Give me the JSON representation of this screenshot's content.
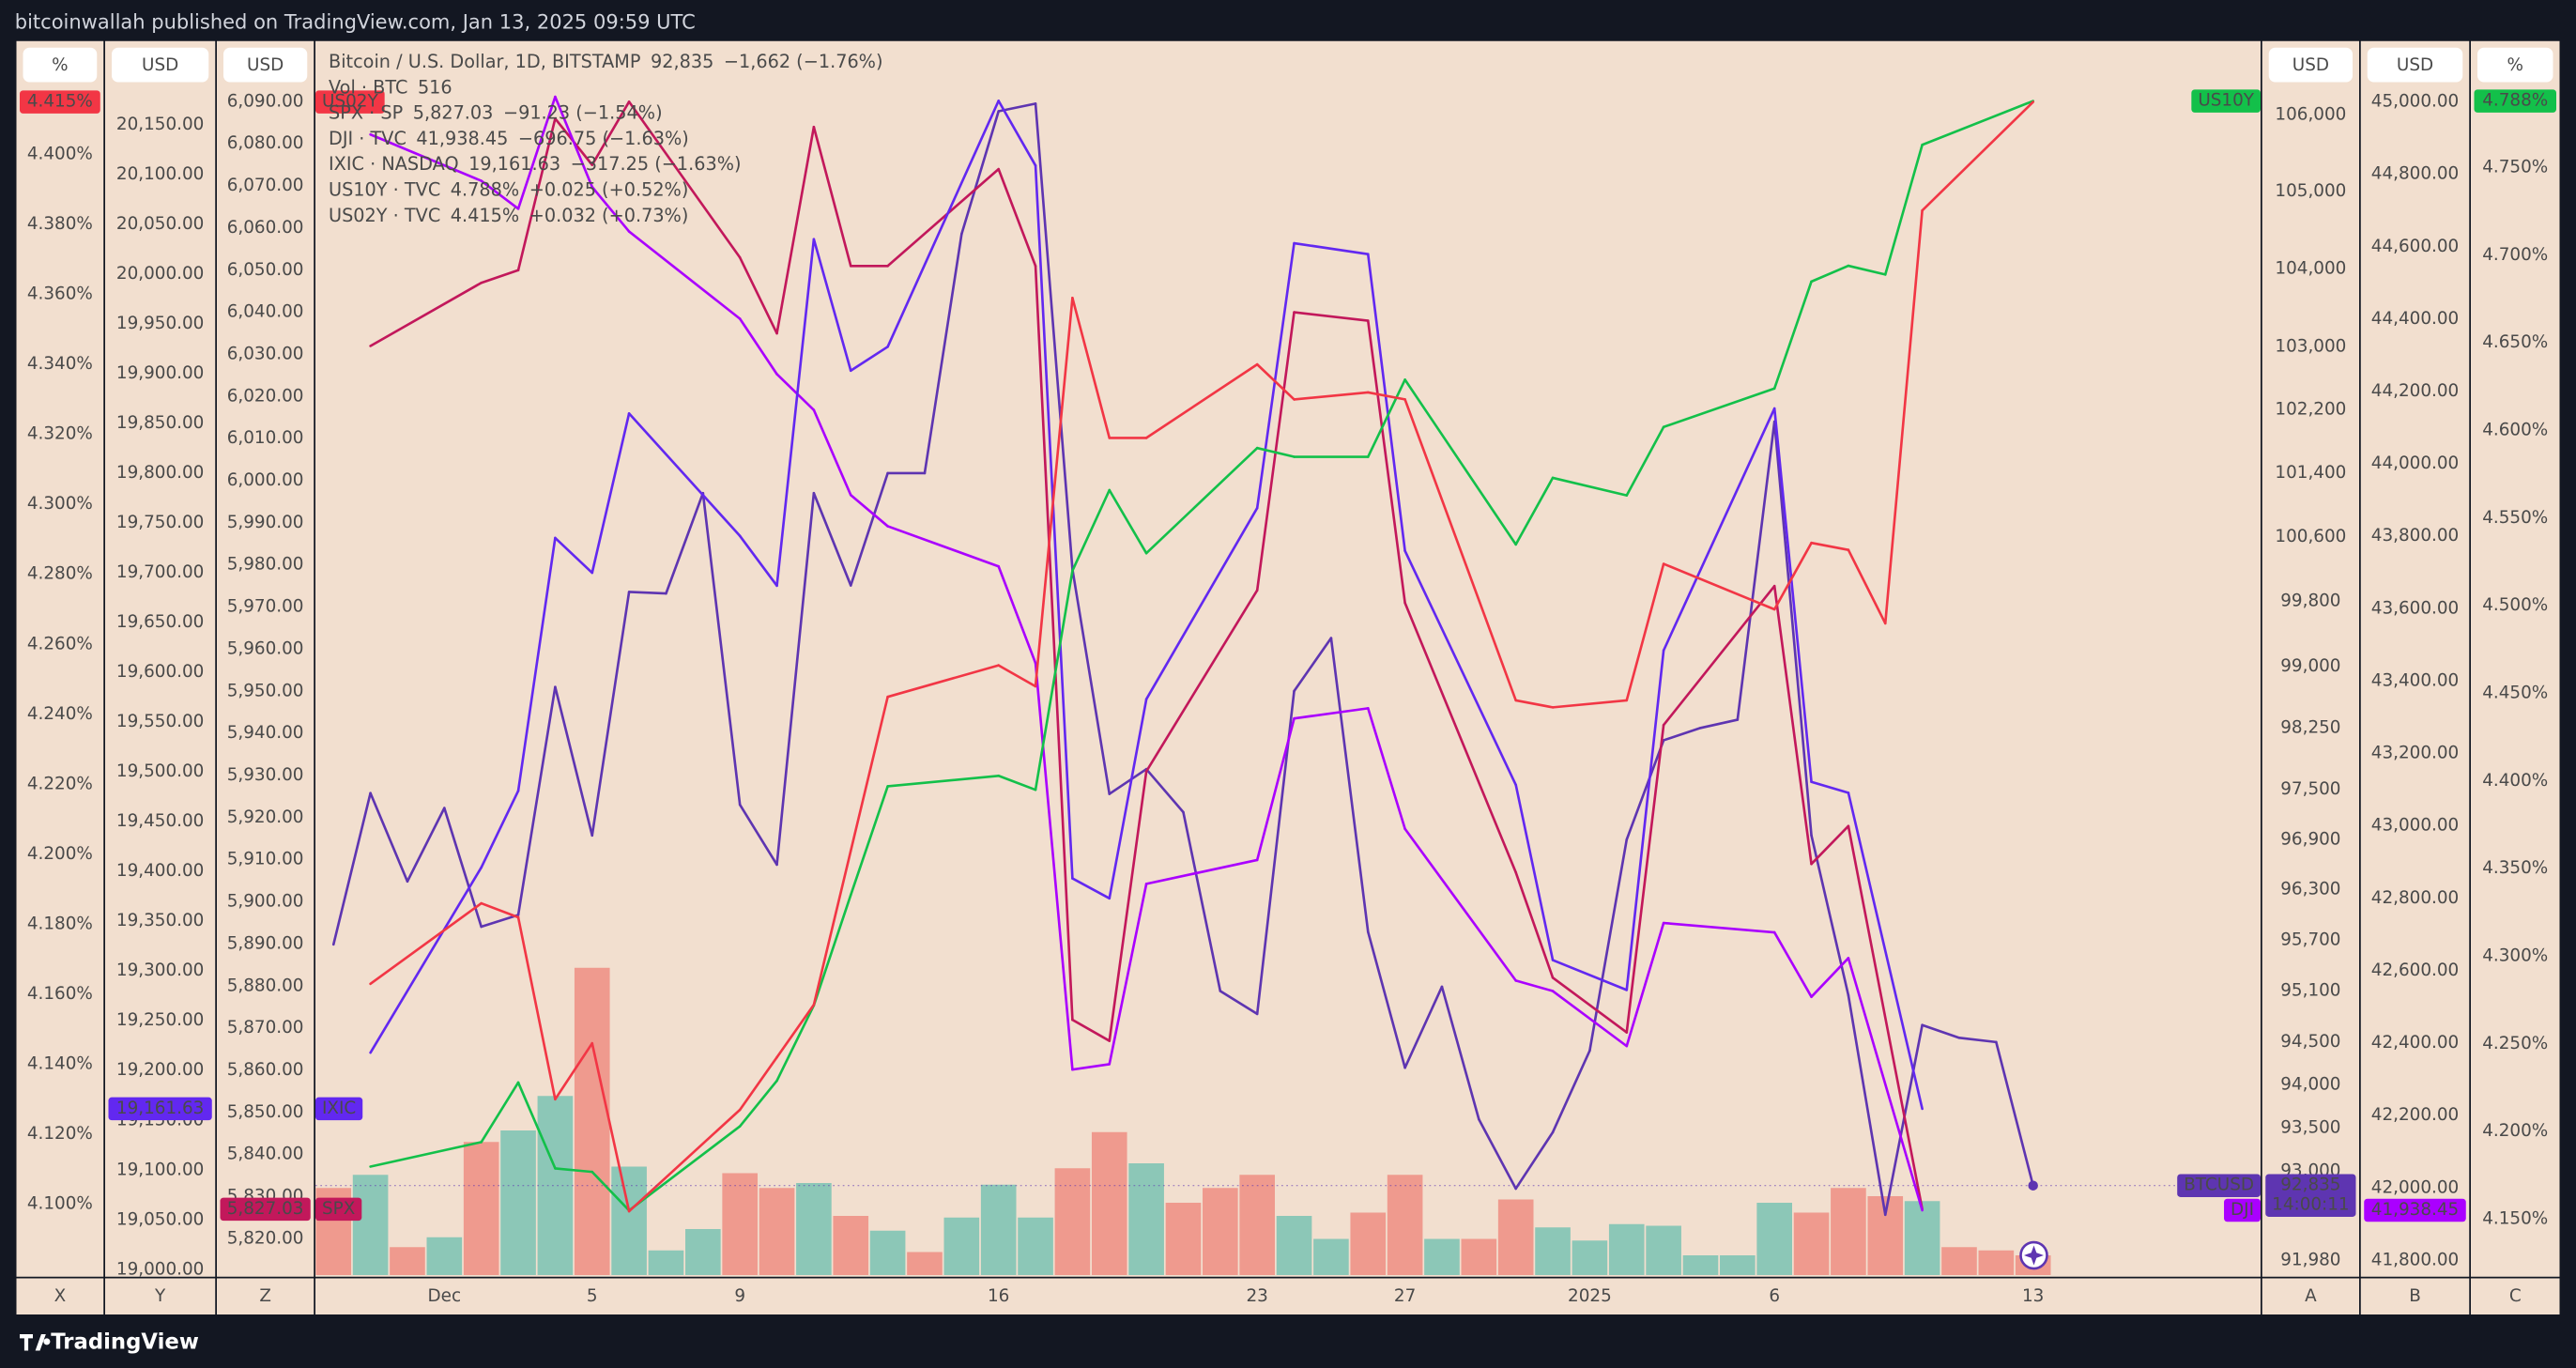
{
  "header": "bitcoinwallah published on TradingView.com, Jan 13, 2025 09:59 UTC",
  "footer": "TradingView",
  "chart_data": {
    "type": "line",
    "grid": false,
    "categories": [
      null,
      null,
      null,
      "Dec",
      null,
      null,
      null,
      "5",
      null,
      null,
      null,
      "9",
      null,
      null,
      null,
      null,
      null,
      null,
      "16",
      null,
      null,
      null,
      null,
      null,
      null,
      "23",
      null,
      null,
      null,
      "27",
      null,
      null,
      null,
      null,
      "2025",
      null,
      null,
      null,
      null,
      "6",
      null,
      null,
      null,
      null,
      null,
      null,
      "13"
    ],
    "axes": [
      {
        "id": "X",
        "side": "left",
        "unit": "%",
        "ylim": [
          4.0793,
          4.4324
        ],
        "yticks": [
          {
            "value": 4.1,
            "label": "4.100%"
          },
          {
            "value": 4.12,
            "label": "4.120%"
          },
          {
            "value": 4.14,
            "label": "4.140%"
          },
          {
            "value": 4.16,
            "label": "4.160%"
          },
          {
            "value": 4.18,
            "label": "4.180%"
          },
          {
            "value": 4.2,
            "label": "4.200%"
          },
          {
            "value": 4.22,
            "label": "4.220%"
          },
          {
            "value": 4.24,
            "label": "4.240%"
          },
          {
            "value": 4.26,
            "label": "4.260%"
          },
          {
            "value": 4.28,
            "label": "4.280%"
          },
          {
            "value": 4.3,
            "label": "4.300%"
          },
          {
            "value": 4.32,
            "label": "4.320%"
          },
          {
            "value": 4.34,
            "label": "4.340%"
          },
          {
            "value": 4.36,
            "label": "4.360%"
          },
          {
            "value": 4.38,
            "label": "4.380%"
          },
          {
            "value": 4.4,
            "label": "4.400%"
          }
        ]
      },
      {
        "id": "Y",
        "side": "left",
        "unit": "USD",
        "ylim": [
          18993,
          20234
        ],
        "yticks": [
          {
            "value": 19000,
            "label": "19,000.00"
          },
          {
            "value": 19050,
            "label": "19,050.00"
          },
          {
            "value": 19100,
            "label": "19,100.00"
          },
          {
            "value": 19150,
            "label": "19,150.00"
          },
          {
            "value": 19200,
            "label": "19,200.00"
          },
          {
            "value": 19250,
            "label": "19,250.00"
          },
          {
            "value": 19300,
            "label": "19,300.00"
          },
          {
            "value": 19350,
            "label": "19,350.00"
          },
          {
            "value": 19400,
            "label": "19,400.00"
          },
          {
            "value": 19450,
            "label": "19,450.00"
          },
          {
            "value": 19500,
            "label": "19,500.00"
          },
          {
            "value": 19550,
            "label": "19,550.00"
          },
          {
            "value": 19600,
            "label": "19,600.00"
          },
          {
            "value": 19650,
            "label": "19,650.00"
          },
          {
            "value": 19700,
            "label": "19,700.00"
          },
          {
            "value": 19750,
            "label": "19,750.00"
          },
          {
            "value": 19800,
            "label": "19,800.00"
          },
          {
            "value": 19850,
            "label": "19,850.00"
          },
          {
            "value": 19900,
            "label": "19,900.00"
          },
          {
            "value": 19950,
            "label": "19,950.00"
          },
          {
            "value": 20000,
            "label": "20,000.00"
          },
          {
            "value": 20050,
            "label": "20,050.00"
          },
          {
            "value": 20100,
            "label": "20,100.00"
          },
          {
            "value": 20150,
            "label": "20,150.00"
          }
        ]
      },
      {
        "id": "Z",
        "side": "left",
        "unit": "USD",
        "ylim": [
          5811.0,
          6104.4
        ],
        "yticks": [
          {
            "value": 5820,
            "label": "5,820.00"
          },
          {
            "value": 5830,
            "label": "5,830.00"
          },
          {
            "value": 5840,
            "label": "5,840.00"
          },
          {
            "value": 5850,
            "label": "5,850.00"
          },
          {
            "value": 5860,
            "label": "5,860.00"
          },
          {
            "value": 5870,
            "label": "5,870.00"
          },
          {
            "value": 5880,
            "label": "5,880.00"
          },
          {
            "value": 5890,
            "label": "5,890.00"
          },
          {
            "value": 5900,
            "label": "5,900.00"
          },
          {
            "value": 5910,
            "label": "5,910.00"
          },
          {
            "value": 5920,
            "label": "5,920.00"
          },
          {
            "value": 5930,
            "label": "5,930.00"
          },
          {
            "value": 5940,
            "label": "5,940.00"
          },
          {
            "value": 5950,
            "label": "5,950.00"
          },
          {
            "value": 5960,
            "label": "5,960.00"
          },
          {
            "value": 5970,
            "label": "5,970.00"
          },
          {
            "value": 5980,
            "label": "5,980.00"
          },
          {
            "value": 5990,
            "label": "5,990.00"
          },
          {
            "value": 6000,
            "label": "6,000.00"
          },
          {
            "value": 6010,
            "label": "6,010.00"
          },
          {
            "value": 6020,
            "label": "6,020.00"
          },
          {
            "value": 6030,
            "label": "6,030.00"
          },
          {
            "value": 6040,
            "label": "6,040.00"
          },
          {
            "value": 6050,
            "label": "6,050.00"
          },
          {
            "value": 6060,
            "label": "6,060.00"
          },
          {
            "value": 6070,
            "label": "6,070.00"
          },
          {
            "value": 6080,
            "label": "6,080.00"
          },
          {
            "value": 6090,
            "label": "6,090.00"
          }
        ]
      },
      {
        "id": "A",
        "side": "right",
        "unit": "USD",
        "log": true,
        "ylim": [
          91793,
          106976
        ],
        "yticks": [
          {
            "value": 91980,
            "label": "91,980"
          },
          {
            "value": 93000,
            "label": "93,000"
          },
          {
            "value": 93500,
            "label": "93,500"
          },
          {
            "value": 94000,
            "label": "94,000"
          },
          {
            "value": 94500,
            "label": "94,500"
          },
          {
            "value": 95100,
            "label": "95,100"
          },
          {
            "value": 95700,
            "label": "95,700"
          },
          {
            "value": 96300,
            "label": "96,300"
          },
          {
            "value": 96900,
            "label": "96,900"
          },
          {
            "value": 97500,
            "label": "97,500"
          },
          {
            "value": 98250,
            "label": "98,250"
          },
          {
            "value": 99000,
            "label": "99,000"
          },
          {
            "value": 99800,
            "label": "99,800"
          },
          {
            "value": 100600,
            "label": "100,600"
          },
          {
            "value": 101400,
            "label": "101,400"
          },
          {
            "value": 102200,
            "label": "102,200"
          },
          {
            "value": 103000,
            "label": "103,000"
          },
          {
            "value": 104000,
            "label": "104,000"
          },
          {
            "value": 105000,
            "label": "105,000"
          },
          {
            "value": 106000,
            "label": "106,000"
          }
        ]
      },
      {
        "id": "B",
        "side": "right",
        "unit": "USD",
        "ylim": [
          41755,
          45168
        ],
        "yticks": [
          {
            "value": 41800,
            "label": "41,800.00"
          },
          {
            "value": 42000,
            "label": "42,000.00"
          },
          {
            "value": 42200,
            "label": "42,200.00"
          },
          {
            "value": 42400,
            "label": "42,400.00"
          },
          {
            "value": 42600,
            "label": "42,600.00"
          },
          {
            "value": 42800,
            "label": "42,800.00"
          },
          {
            "value": 43000,
            "label": "43,000.00"
          },
          {
            "value": 43200,
            "label": "43,200.00"
          },
          {
            "value": 43400,
            "label": "43,400.00"
          },
          {
            "value": 43600,
            "label": "43,600.00"
          },
          {
            "value": 43800,
            "label": "43,800.00"
          },
          {
            "value": 44000,
            "label": "44,000.00"
          },
          {
            "value": 44200,
            "label": "44,200.00"
          },
          {
            "value": 44400,
            "label": "44,400.00"
          },
          {
            "value": 44600,
            "label": "44,600.00"
          },
          {
            "value": 44800,
            "label": "44,800.00"
          },
          {
            "value": 45000,
            "label": "45,000.00"
          }
        ]
      },
      {
        "id": "C",
        "side": "right",
        "unit": "%",
        "ylim": [
          4.1172,
          4.8222
        ],
        "yticks": [
          {
            "value": 4.15,
            "label": "4.150%"
          },
          {
            "value": 4.2,
            "label": "4.200%"
          },
          {
            "value": 4.25,
            "label": "4.250%"
          },
          {
            "value": 4.3,
            "label": "4.300%"
          },
          {
            "value": 4.35,
            "label": "4.350%"
          },
          {
            "value": 4.4,
            "label": "4.400%"
          },
          {
            "value": 4.45,
            "label": "4.450%"
          },
          {
            "value": 4.5,
            "label": "4.500%"
          },
          {
            "value": 4.55,
            "label": "4.550%"
          },
          {
            "value": 4.6,
            "label": "4.600%"
          },
          {
            "value": 4.65,
            "label": "4.650%"
          },
          {
            "value": 4.7,
            "label": "4.700%"
          },
          {
            "value": 4.75,
            "label": "4.750%"
          }
        ]
      }
    ],
    "series": [
      {
        "name": "Bitcoin / U.S. Dollar, 1D, BITSTAMP",
        "symbol": "BTCUSD",
        "last_label": "92,835",
        "change": "−1,662 (−1.76%)",
        "countdown": "14:00:11",
        "color": "#5e35b1",
        "axis": "A",
        "values": [
          95650,
          97460,
          96400,
          97280,
          95860,
          96000,
          98750,
          96950,
          99920,
          99900,
          101150,
          97320,
          96600,
          101150,
          100000,
          101400,
          101400,
          104450,
          106050,
          106150,
          100200,
          97450,
          97750,
          97230,
          95100,
          94830,
          98700,
          99350,
          95800,
          94200,
          95150,
          93600,
          92800,
          93450,
          94400,
          96900,
          98100,
          98250,
          98350,
          102050,
          96950,
          95050,
          92500,
          94700,
          94550,
          94500,
          92835
        ]
      },
      {
        "name": "SPX · SP",
        "symbol": "SPX",
        "last_label": "5,827.03",
        "change": "−91.23 (−1.54%)",
        "color": "#c2185b",
        "axis": "Z",
        "values": [
          null,
          6032,
          null,
          null,
          6047,
          6050,
          6086,
          6075,
          6090,
          null,
          null,
          6053,
          6035,
          6084,
          6051,
          6051,
          null,
          null,
          6074,
          6051,
          5872,
          5867,
          5931,
          null,
          null,
          5974,
          6040,
          null,
          6038,
          5971,
          null,
          null,
          5907,
          5882,
          null,
          5869,
          5942,
          null,
          null,
          5975,
          5909,
          5918,
          null,
          5827.03,
          null,
          null,
          null
        ]
      },
      {
        "name": "DJI · TVC",
        "symbol": "DJI",
        "last_label": "41,938.45",
        "change": "−696.75 (−1.63%)",
        "color": "#aa00ff",
        "axis": "B",
        "values": [
          null,
          44910,
          null,
          null,
          44782,
          44705,
          45014,
          44765,
          44642,
          null,
          null,
          44401,
          44248,
          44149,
          43914,
          43828,
          null,
          null,
          43717,
          43450,
          42327,
          42342,
          42840,
          null,
          null,
          42906,
          43297,
          null,
          43325,
          42992,
          null,
          null,
          42573,
          42544,
          null,
          42392,
          42732,
          null,
          null,
          42706,
          42528,
          42635,
          null,
          41938.45,
          null,
          null,
          null
        ]
      },
      {
        "name": "IXIC · NASDAQ",
        "symbol": "IXIC",
        "last_label": "19,161.63",
        "change": "−317.25 (−1.63%)",
        "color": "#6228f0",
        "axis": "Y",
        "values": [
          null,
          19218,
          null,
          null,
          19404,
          19481,
          19735,
          19700,
          19860,
          null,
          null,
          19737,
          19687,
          20035,
          19903,
          19927,
          null,
          null,
          20174,
          20109,
          19393,
          19373,
          19573,
          null,
          null,
          19765,
          20031,
          null,
          20020,
          19722,
          null,
          null,
          19487,
          19311,
          null,
          19281,
          19622,
          null,
          null,
          19865,
          19490,
          19479,
          null,
          19161.63,
          null,
          null,
          null
        ]
      },
      {
        "name": "US10Y · TVC",
        "symbol": "US10Y",
        "last_label": "4.788%",
        "change": "+0.025 (+0.52%)",
        "color": "#13c04a",
        "axis": "C",
        "values": [
          null,
          4.18,
          null,
          null,
          4.194,
          4.228,
          4.179,
          4.177,
          4.155,
          null,
          null,
          4.203,
          4.229,
          4.272,
          4.335,
          4.397,
          null,
          null,
          4.403,
          4.395,
          4.52,
          4.566,
          4.53,
          null,
          null,
          4.59,
          4.585,
          null,
          4.585,
          4.629,
          null,
          null,
          4.535,
          4.573,
          null,
          4.563,
          4.602,
          null,
          null,
          4.624,
          4.685,
          4.694,
          4.689,
          4.763,
          null,
          null,
          4.788
        ]
      },
      {
        "name": "US02Y · TVC",
        "symbol": "US02Y",
        "last_label": "4.415%",
        "change": "+0.032 (+0.73%)",
        "color": "#f23645",
        "axis": "X",
        "values": [
          null,
          4.163,
          null,
          null,
          4.186,
          4.182,
          4.13,
          4.146,
          4.098,
          null,
          null,
          4.127,
          4.142,
          4.157,
          4.201,
          4.245,
          null,
          null,
          4.254,
          4.248,
          4.359,
          4.319,
          4.319,
          null,
          null,
          4.34,
          4.33,
          null,
          4.332,
          4.33,
          null,
          null,
          4.244,
          4.242,
          null,
          4.244,
          4.283,
          null,
          null,
          4.27,
          4.289,
          4.287,
          4.266,
          4.384,
          null,
          null,
          4.415
        ]
      }
    ],
    "volume": {
      "name": "Vol · BTC",
      "last_label": "516",
      "values": [
        2279,
        2623,
        731,
        989,
        3483,
        3784,
        4687,
        8041,
        2838,
        645,
        1204,
        2666,
        2279,
        2408,
        1548,
        1161,
        602,
        1505,
        2365,
        1505,
        2795,
        3741,
        2924,
        1892,
        2279,
        2623,
        1548,
        946,
        1634,
        2623,
        946,
        946,
        1978,
        1247,
        903,
        1333,
        1290,
        516,
        516,
        1892,
        1634,
        2279,
        2064,
        1935,
        731,
        645,
        516
      ],
      "colors": [
        "#ef9a8e",
        "#8cc7b7",
        "#ef9a8e",
        "#8cc7b7",
        "#ef9a8e",
        "#8cc7b7",
        "#8cc7b7",
        "#ef9a8e",
        "#8cc7b7",
        "#8cc7b7",
        "#8cc7b7",
        "#ef9a8e",
        "#ef9a8e",
        "#8cc7b7",
        "#ef9a8e",
        "#8cc7b7",
        "#ef9a8e",
        "#8cc7b7",
        "#8cc7b7",
        "#8cc7b7",
        "#ef9a8e",
        "#ef9a8e",
        "#8cc7b7",
        "#ef9a8e",
        "#ef9a8e",
        "#ef9a8e",
        "#8cc7b7",
        "#8cc7b7",
        "#ef9a8e",
        "#ef9a8e",
        "#8cc7b7",
        "#ef9a8e",
        "#ef9a8e",
        "#8cc7b7",
        "#8cc7b7",
        "#8cc7b7",
        "#8cc7b7",
        "#8cc7b7",
        "#8cc7b7",
        "#8cc7b7",
        "#ef9a8e",
        "#ef9a8e",
        "#ef9a8e",
        "#8cc7b7",
        "#ef9a8e",
        "#ef9a8e",
        "#ef9a8e"
      ]
    }
  }
}
